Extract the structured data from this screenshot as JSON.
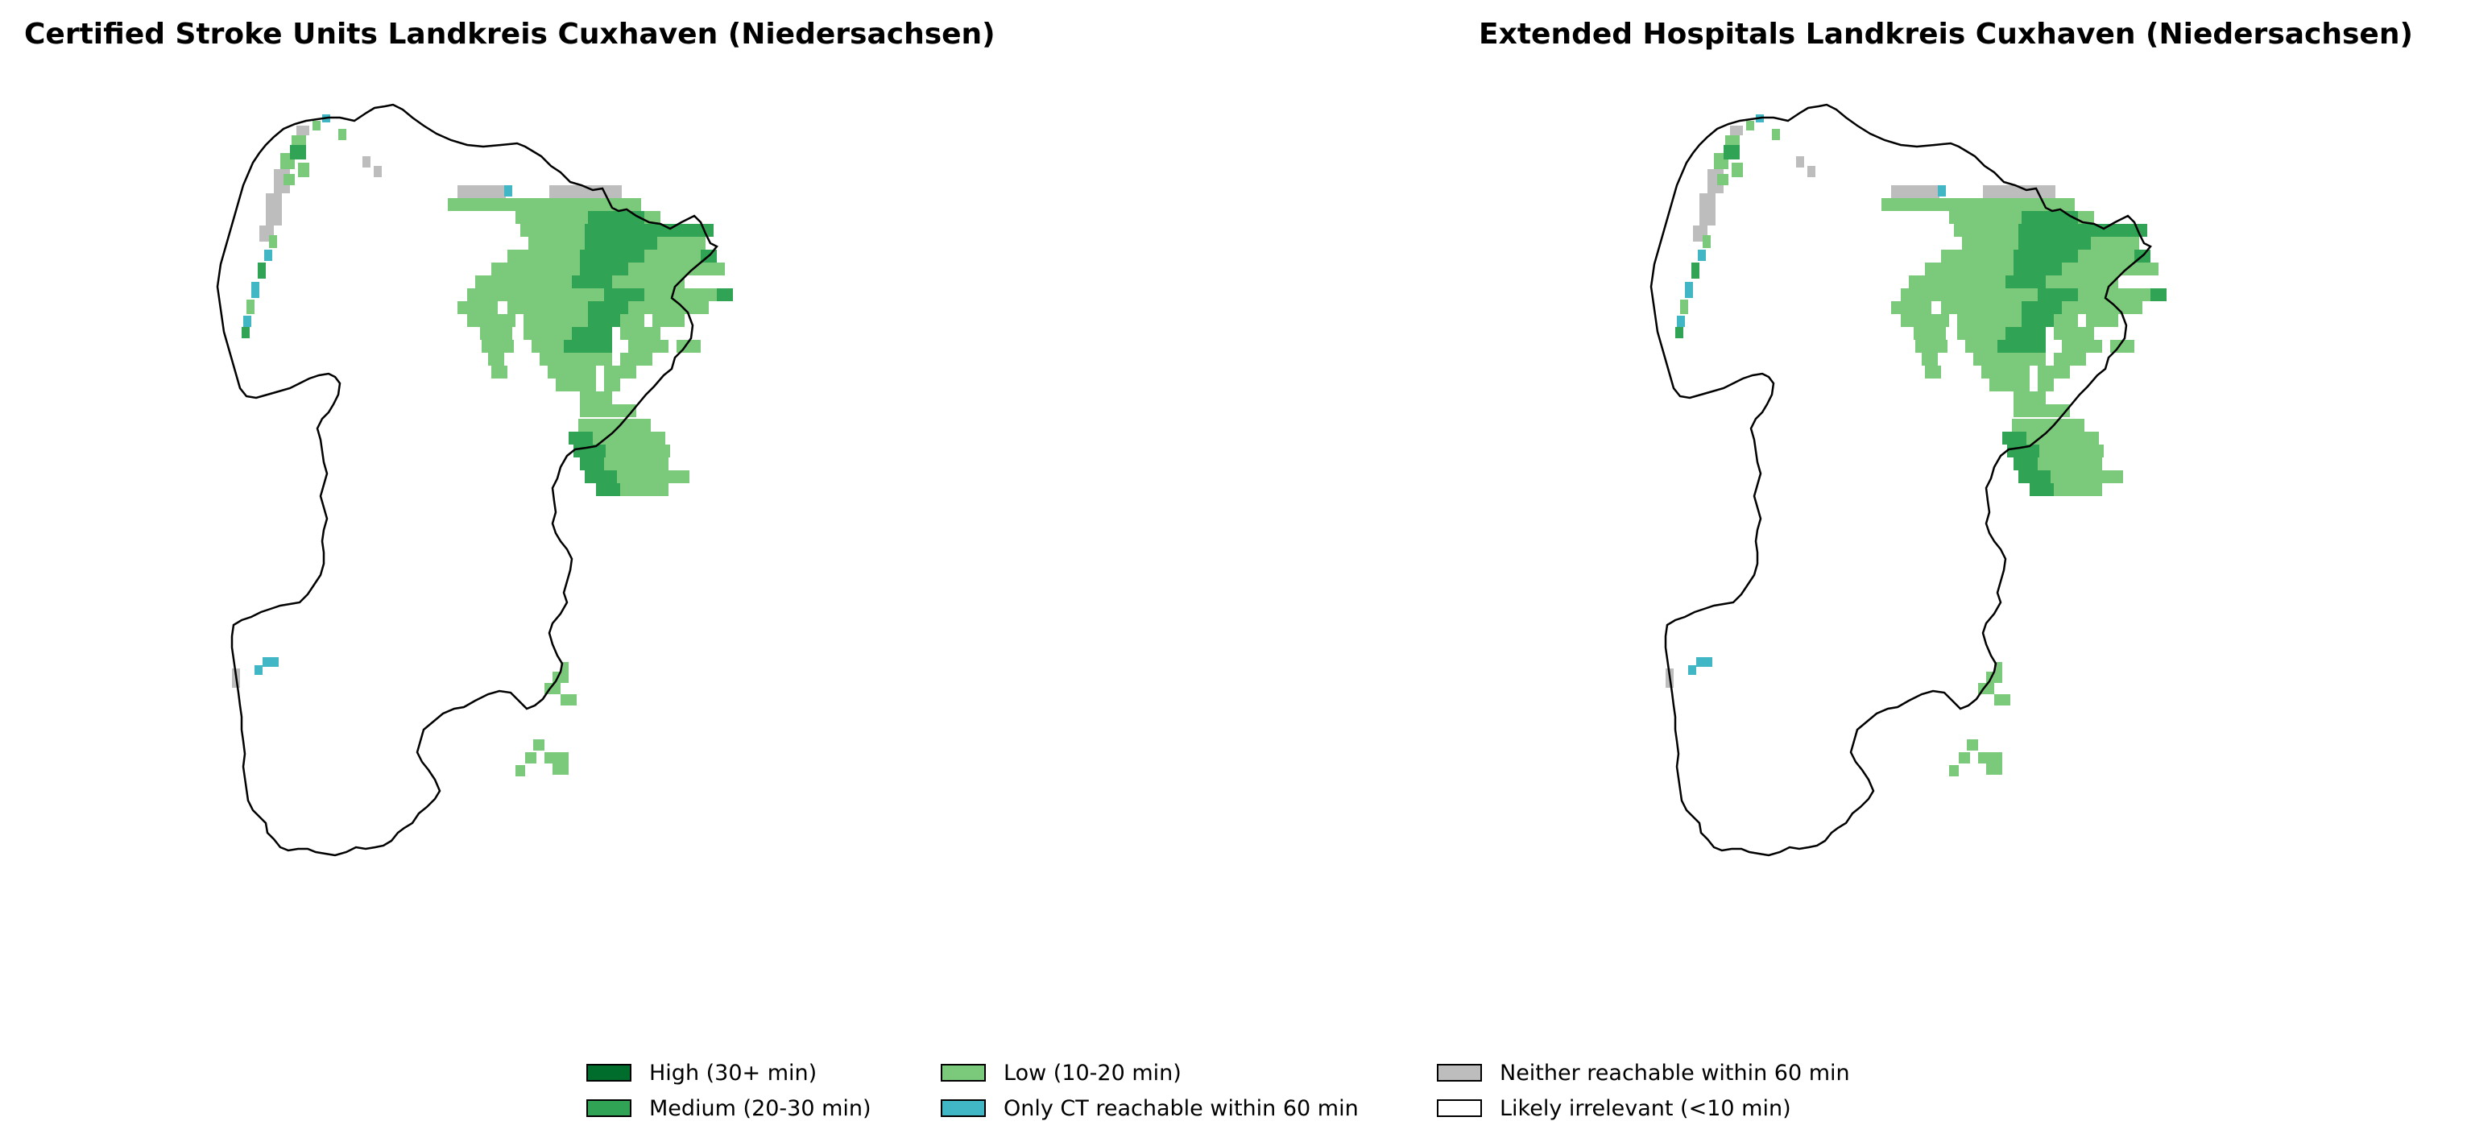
{
  "panels": [
    {
      "title": "Certified Stroke Units Landkreis Cuxhaven (Niedersachsen)"
    },
    {
      "title": "Extended Hospitals Landkreis Cuxhaven (Niedersachsen)"
    }
  ],
  "legend": {
    "items": [
      {
        "key": "high",
        "label": "High (30+ min)",
        "color": "#006d2c"
      },
      {
        "key": "medium",
        "label": "Medium (20-30 min)",
        "color": "#31a354"
      },
      {
        "key": "low",
        "label": "Low (10-20 min)",
        "color": "#7bc97a"
      },
      {
        "key": "ct",
        "label": "Only CT reachable within 60 min",
        "color": "#41b6c4"
      },
      {
        "key": "neither",
        "label": "Neither reachable within 60 min",
        "color": "#bdbdbd"
      },
      {
        "key": "irrelevant",
        "label": "Likely irrelevant (<10 min)",
        "color": "#ffffff"
      }
    ]
  },
  "colors": {
    "outline": "#000000",
    "background": "#ffffff"
  }
}
